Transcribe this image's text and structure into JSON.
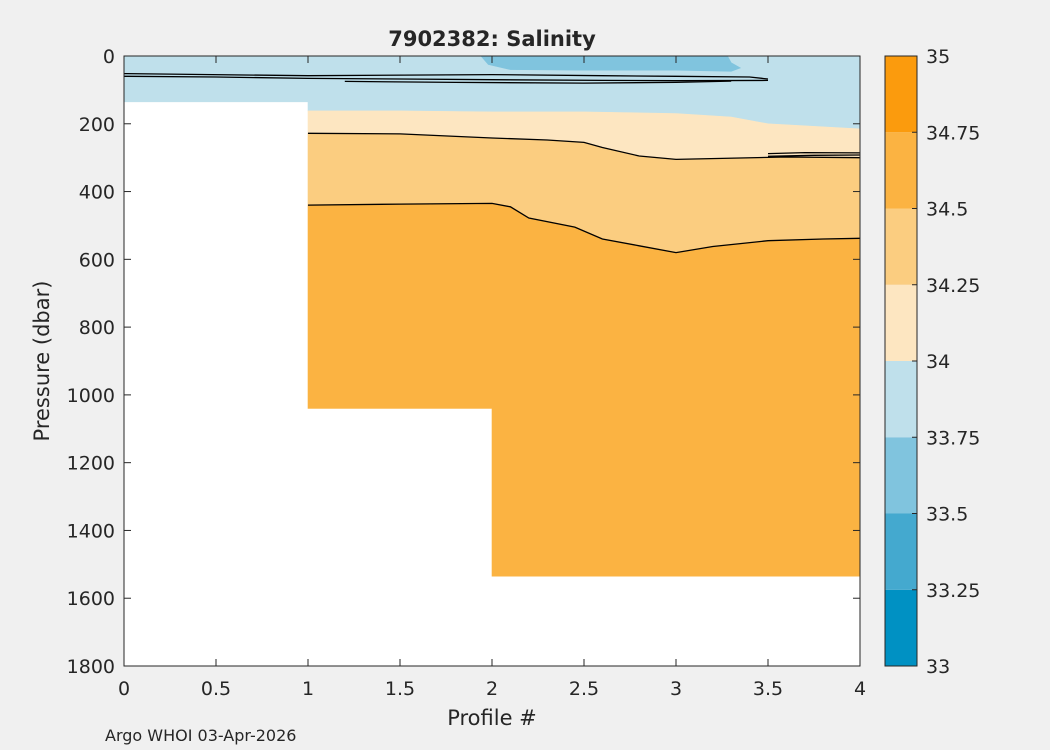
{
  "chart_data": {
    "type": "heatmap",
    "title": "7902382:  Salinity",
    "xlabel": "Profile #",
    "ylabel": "Pressure (dbar)",
    "xlim": [
      0,
      4
    ],
    "ylim": [
      0,
      1800
    ],
    "y_reversed": true,
    "x_ticks": [
      {
        "value": 0,
        "label": "0"
      },
      {
        "value": 0.5,
        "label": "0.5"
      },
      {
        "value": 1,
        "label": "1"
      },
      {
        "value": 1.5,
        "label": "1.5"
      },
      {
        "value": 2,
        "label": "2"
      },
      {
        "value": 2.5,
        "label": "2.5"
      },
      {
        "value": 3,
        "label": "3"
      },
      {
        "value": 3.5,
        "label": "3.5"
      },
      {
        "value": 4,
        "label": "4"
      }
    ],
    "y_ticks": [
      {
        "value": 0,
        "label": "0"
      },
      {
        "value": 200,
        "label": "200"
      },
      {
        "value": 400,
        "label": "400"
      },
      {
        "value": 600,
        "label": "600"
      },
      {
        "value": 800,
        "label": "800"
      },
      {
        "value": 1000,
        "label": "1000"
      },
      {
        "value": 1200,
        "label": "1200"
      },
      {
        "value": 1400,
        "label": "1400"
      },
      {
        "value": 1600,
        "label": "1600"
      },
      {
        "value": 1800,
        "label": "1800"
      }
    ],
    "colorbar": {
      "levels": [
        33,
        33.25,
        33.5,
        33.75,
        34,
        34.25,
        34.5,
        34.75,
        35
      ],
      "labels": [
        "33",
        "33.25",
        "33.5",
        "33.75",
        "34",
        "34.25",
        "34.5",
        "34.75",
        "35"
      ],
      "colors": [
        "#0091c3",
        "#44a9cf",
        "#80c4de",
        "#bfe0eb",
        "#fde6c1",
        "#fbcd80",
        "#fbb342",
        "#fb9b0d"
      ]
    },
    "data_coverage": [
      {
        "x_range": [
          0,
          1
        ],
        "max_pressure": 135
      },
      {
        "x_range": [
          1,
          2
        ],
        "max_pressure": 1040
      },
      {
        "x_range": [
          2,
          4
        ],
        "max_pressure": 1535
      }
    ],
    "regions": [
      {
        "level_index": 3,
        "polygon": [
          [
            0,
            0
          ],
          [
            4,
            0
          ],
          [
            4,
            215
          ],
          [
            3.5,
            200
          ],
          [
            3.3,
            180
          ],
          [
            3,
            170
          ],
          [
            2.5,
            165
          ],
          [
            2,
            165
          ],
          [
            1.5,
            162
          ],
          [
            1,
            162
          ],
          [
            1,
            135
          ],
          [
            0,
            135
          ]
        ]
      },
      {
        "level_index": 2,
        "polygon": [
          [
            1.94,
            0
          ],
          [
            1.98,
            25
          ],
          [
            2.1,
            40
          ],
          [
            2.5,
            42
          ],
          [
            3,
            42
          ],
          [
            3.3,
            45
          ],
          [
            3.35,
            35
          ],
          [
            3.3,
            20
          ],
          [
            3.28,
            0
          ]
        ]
      },
      {
        "level_index": 4,
        "polygon": [
          [
            1,
            162
          ],
          [
            1.5,
            162
          ],
          [
            2,
            165
          ],
          [
            2.5,
            165
          ],
          [
            3,
            170
          ],
          [
            3.3,
            180
          ],
          [
            3.5,
            200
          ],
          [
            4,
            215
          ],
          [
            4,
            300
          ],
          [
            3.6,
            298
          ],
          [
            3,
            305
          ],
          [
            2.8,
            295
          ],
          [
            2.6,
            270
          ],
          [
            2.5,
            255
          ],
          [
            2.3,
            248
          ],
          [
            2,
            242
          ],
          [
            1.5,
            230
          ],
          [
            1.2,
            228
          ],
          [
            1,
            228
          ]
        ]
      },
      {
        "level_index": 5,
        "polygon": [
          [
            1,
            228
          ],
          [
            1.2,
            228
          ],
          [
            1.5,
            230
          ],
          [
            2,
            242
          ],
          [
            2.3,
            248
          ],
          [
            2.5,
            255
          ],
          [
            2.6,
            270
          ],
          [
            2.8,
            295
          ],
          [
            3,
            305
          ],
          [
            3.6,
            298
          ],
          [
            4,
            300
          ],
          [
            4,
            538
          ],
          [
            3.8,
            540
          ],
          [
            3.5,
            545
          ],
          [
            3.2,
            562
          ],
          [
            3,
            580
          ],
          [
            2.8,
            560
          ],
          [
            2.6,
            540
          ],
          [
            2.45,
            505
          ],
          [
            2.2,
            478
          ],
          [
            2.1,
            445
          ],
          [
            2,
            435
          ],
          [
            1.5,
            437
          ],
          [
            1,
            440
          ]
        ]
      },
      {
        "level_index": 6,
        "polygon": [
          [
            1,
            440
          ],
          [
            1.5,
            437
          ],
          [
            2,
            435
          ],
          [
            2.1,
            445
          ],
          [
            2.2,
            478
          ],
          [
            2.45,
            505
          ],
          [
            2.6,
            540
          ],
          [
            2.8,
            560
          ],
          [
            3,
            580
          ],
          [
            3.2,
            562
          ],
          [
            3.5,
            545
          ],
          [
            3.8,
            540
          ],
          [
            4,
            538
          ],
          [
            4,
            1535
          ],
          [
            2,
            1535
          ],
          [
            2,
            1040
          ],
          [
            1,
            1040
          ]
        ]
      }
    ],
    "contour_lines": [
      [
        [
          0,
          52
        ],
        [
          1,
          58
        ],
        [
          2,
          55
        ],
        [
          2.6,
          58
        ],
        [
          3,
          60
        ],
        [
          3.4,
          62
        ],
        [
          3.5,
          68
        ]
      ],
      [
        [
          0,
          60
        ],
        [
          0.5,
          62
        ],
        [
          1,
          66
        ],
        [
          1.5,
          68
        ],
        [
          2,
          70
        ],
        [
          2.6,
          72
        ],
        [
          3,
          73
        ],
        [
          3.5,
          72
        ]
      ],
      [
        [
          1.2,
          75
        ],
        [
          1.8,
          78
        ],
        [
          2.5,
          80
        ],
        [
          3,
          78
        ],
        [
          3.3,
          74
        ]
      ],
      [
        [
          1,
          228
        ],
        [
          1.5,
          230
        ],
        [
          2,
          242
        ],
        [
          2.3,
          248
        ],
        [
          2.5,
          255
        ],
        [
          2.6,
          270
        ],
        [
          2.8,
          295
        ],
        [
          3,
          305
        ],
        [
          3.6,
          298
        ],
        [
          4,
          300
        ]
      ],
      [
        [
          1,
          440
        ],
        [
          1.5,
          437
        ],
        [
          2,
          435
        ],
        [
          2.1,
          445
        ],
        [
          2.2,
          478
        ],
        [
          2.45,
          505
        ],
        [
          2.6,
          540
        ],
        [
          2.8,
          560
        ],
        [
          3,
          580
        ],
        [
          3.2,
          562
        ],
        [
          3.5,
          545
        ],
        [
          3.8,
          540
        ],
        [
          4,
          538
        ]
      ],
      [
        [
          3.5,
          288
        ],
        [
          3.7,
          285
        ],
        [
          4,
          286
        ]
      ],
      [
        [
          3.5,
          296
        ],
        [
          3.75,
          293
        ],
        [
          4,
          292
        ]
      ]
    ]
  },
  "footer": {
    "credit": "Argo WHOI 03-Apr-2026"
  }
}
